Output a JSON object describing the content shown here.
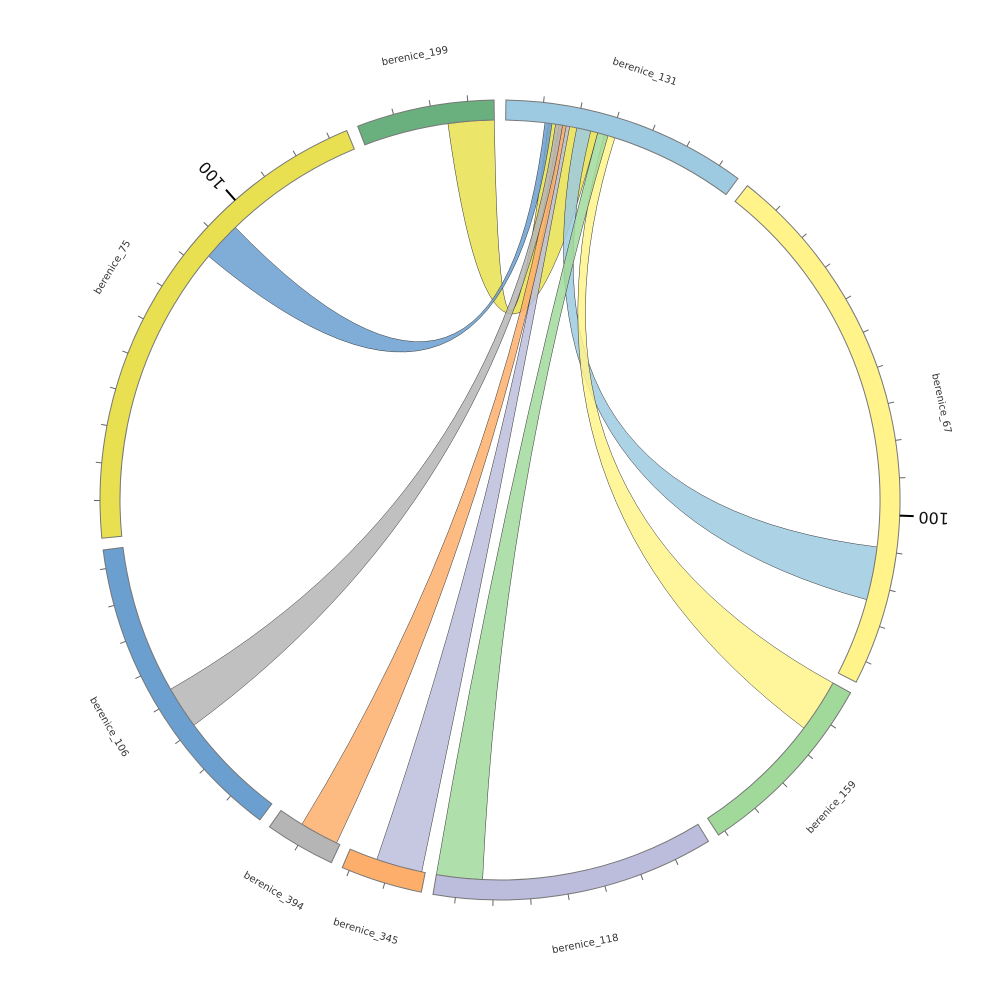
{
  "chart_data": {
    "type": "chord",
    "tick_interval": 10,
    "segments": [
      {
        "name": "berenice_131",
        "value": 66,
        "color": "#9ecae1"
      },
      {
        "name": "berenice_67",
        "value": 146,
        "color": "#fff38a"
      },
      {
        "name": "berenice_159",
        "value": 52,
        "color": "#a1d99b"
      },
      {
        "name": "berenice_118",
        "value": 76,
        "color": "#bcbddc"
      },
      {
        "name": "berenice_345",
        "value": 22,
        "color": "#fdae6b"
      },
      {
        "name": "berenice_394",
        "value": 19,
        "color": "#b5b5b5"
      },
      {
        "name": "berenice_106",
        "value": 85,
        "color": "#6a9fd0"
      },
      {
        "name": "berenice_75",
        "value": 135,
        "color": "#e8e050"
      },
      {
        "name": "berenice_199",
        "value": 37,
        "color": "#6ab07f"
      }
    ],
    "labeled_ticks": [
      {
        "segment": 7,
        "value": 100
      },
      {
        "segment": 1,
        "value": 100
      }
    ],
    "links": [
      {
        "source": 0,
        "target": 8,
        "source_range": [
          12,
          26
        ],
        "target_range": [
          24,
          37
        ],
        "color": "#e8e050"
      },
      {
        "source": 0,
        "target": 7,
        "source_range": [
          11,
          13
        ],
        "target_range": [
          84,
          95
        ],
        "color": "#6a9fd0"
      },
      {
        "source": 0,
        "target": 1,
        "source_range": [
          20,
          24
        ],
        "target_range": [
          109,
          124
        ],
        "color": "#9ecae1"
      },
      {
        "source": 0,
        "target": 2,
        "source_range": [
          28,
          31
        ],
        "target_range": [
          0,
          15
        ],
        "color": "#fff38a"
      },
      {
        "source": 0,
        "target": 3,
        "source_range": [
          26,
          29
        ],
        "target_range": [
          63,
          76
        ],
        "color": "#a1d99b"
      },
      {
        "source": 0,
        "target": 4,
        "source_range": [
          16,
          18
        ],
        "target_range": [
          1,
          14
        ],
        "color": "#bcbddc"
      },
      {
        "source": 0,
        "target": 5,
        "source_range": [
          15,
          17
        ],
        "target_range": [
          1,
          12
        ],
        "color": "#fdae6b"
      },
      {
        "source": 0,
        "target": 6,
        "source_range": [
          14,
          16
        ],
        "target_range": [
          31,
          43
        ],
        "color": "#b5b5b5"
      }
    ]
  }
}
